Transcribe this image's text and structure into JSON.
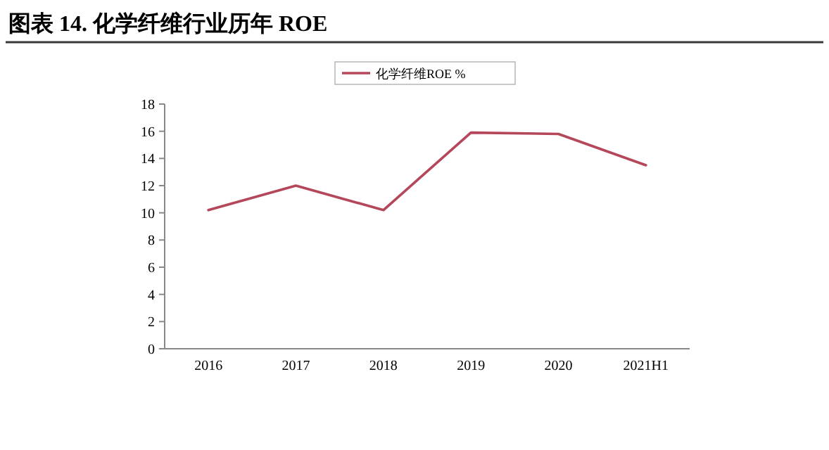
{
  "chart_data": {
    "type": "line",
    "title": "图表 14. 化学纤维行业历年 ROE",
    "categories": [
      "2016",
      "2017",
      "2018",
      "2019",
      "2020",
      "2021H1"
    ],
    "series": [
      {
        "name": "化学纤维ROE %",
        "color": "#b5475a",
        "values": [
          10.2,
          12.0,
          10.2,
          15.9,
          15.8,
          13.5
        ]
      }
    ],
    "ylim": [
      0,
      18
    ],
    "yticks": [
      0,
      2,
      4,
      6,
      8,
      10,
      12,
      14,
      16,
      18
    ],
    "legend": "top",
    "marker": "none",
    "line_style": "solid",
    "grid": false
  }
}
